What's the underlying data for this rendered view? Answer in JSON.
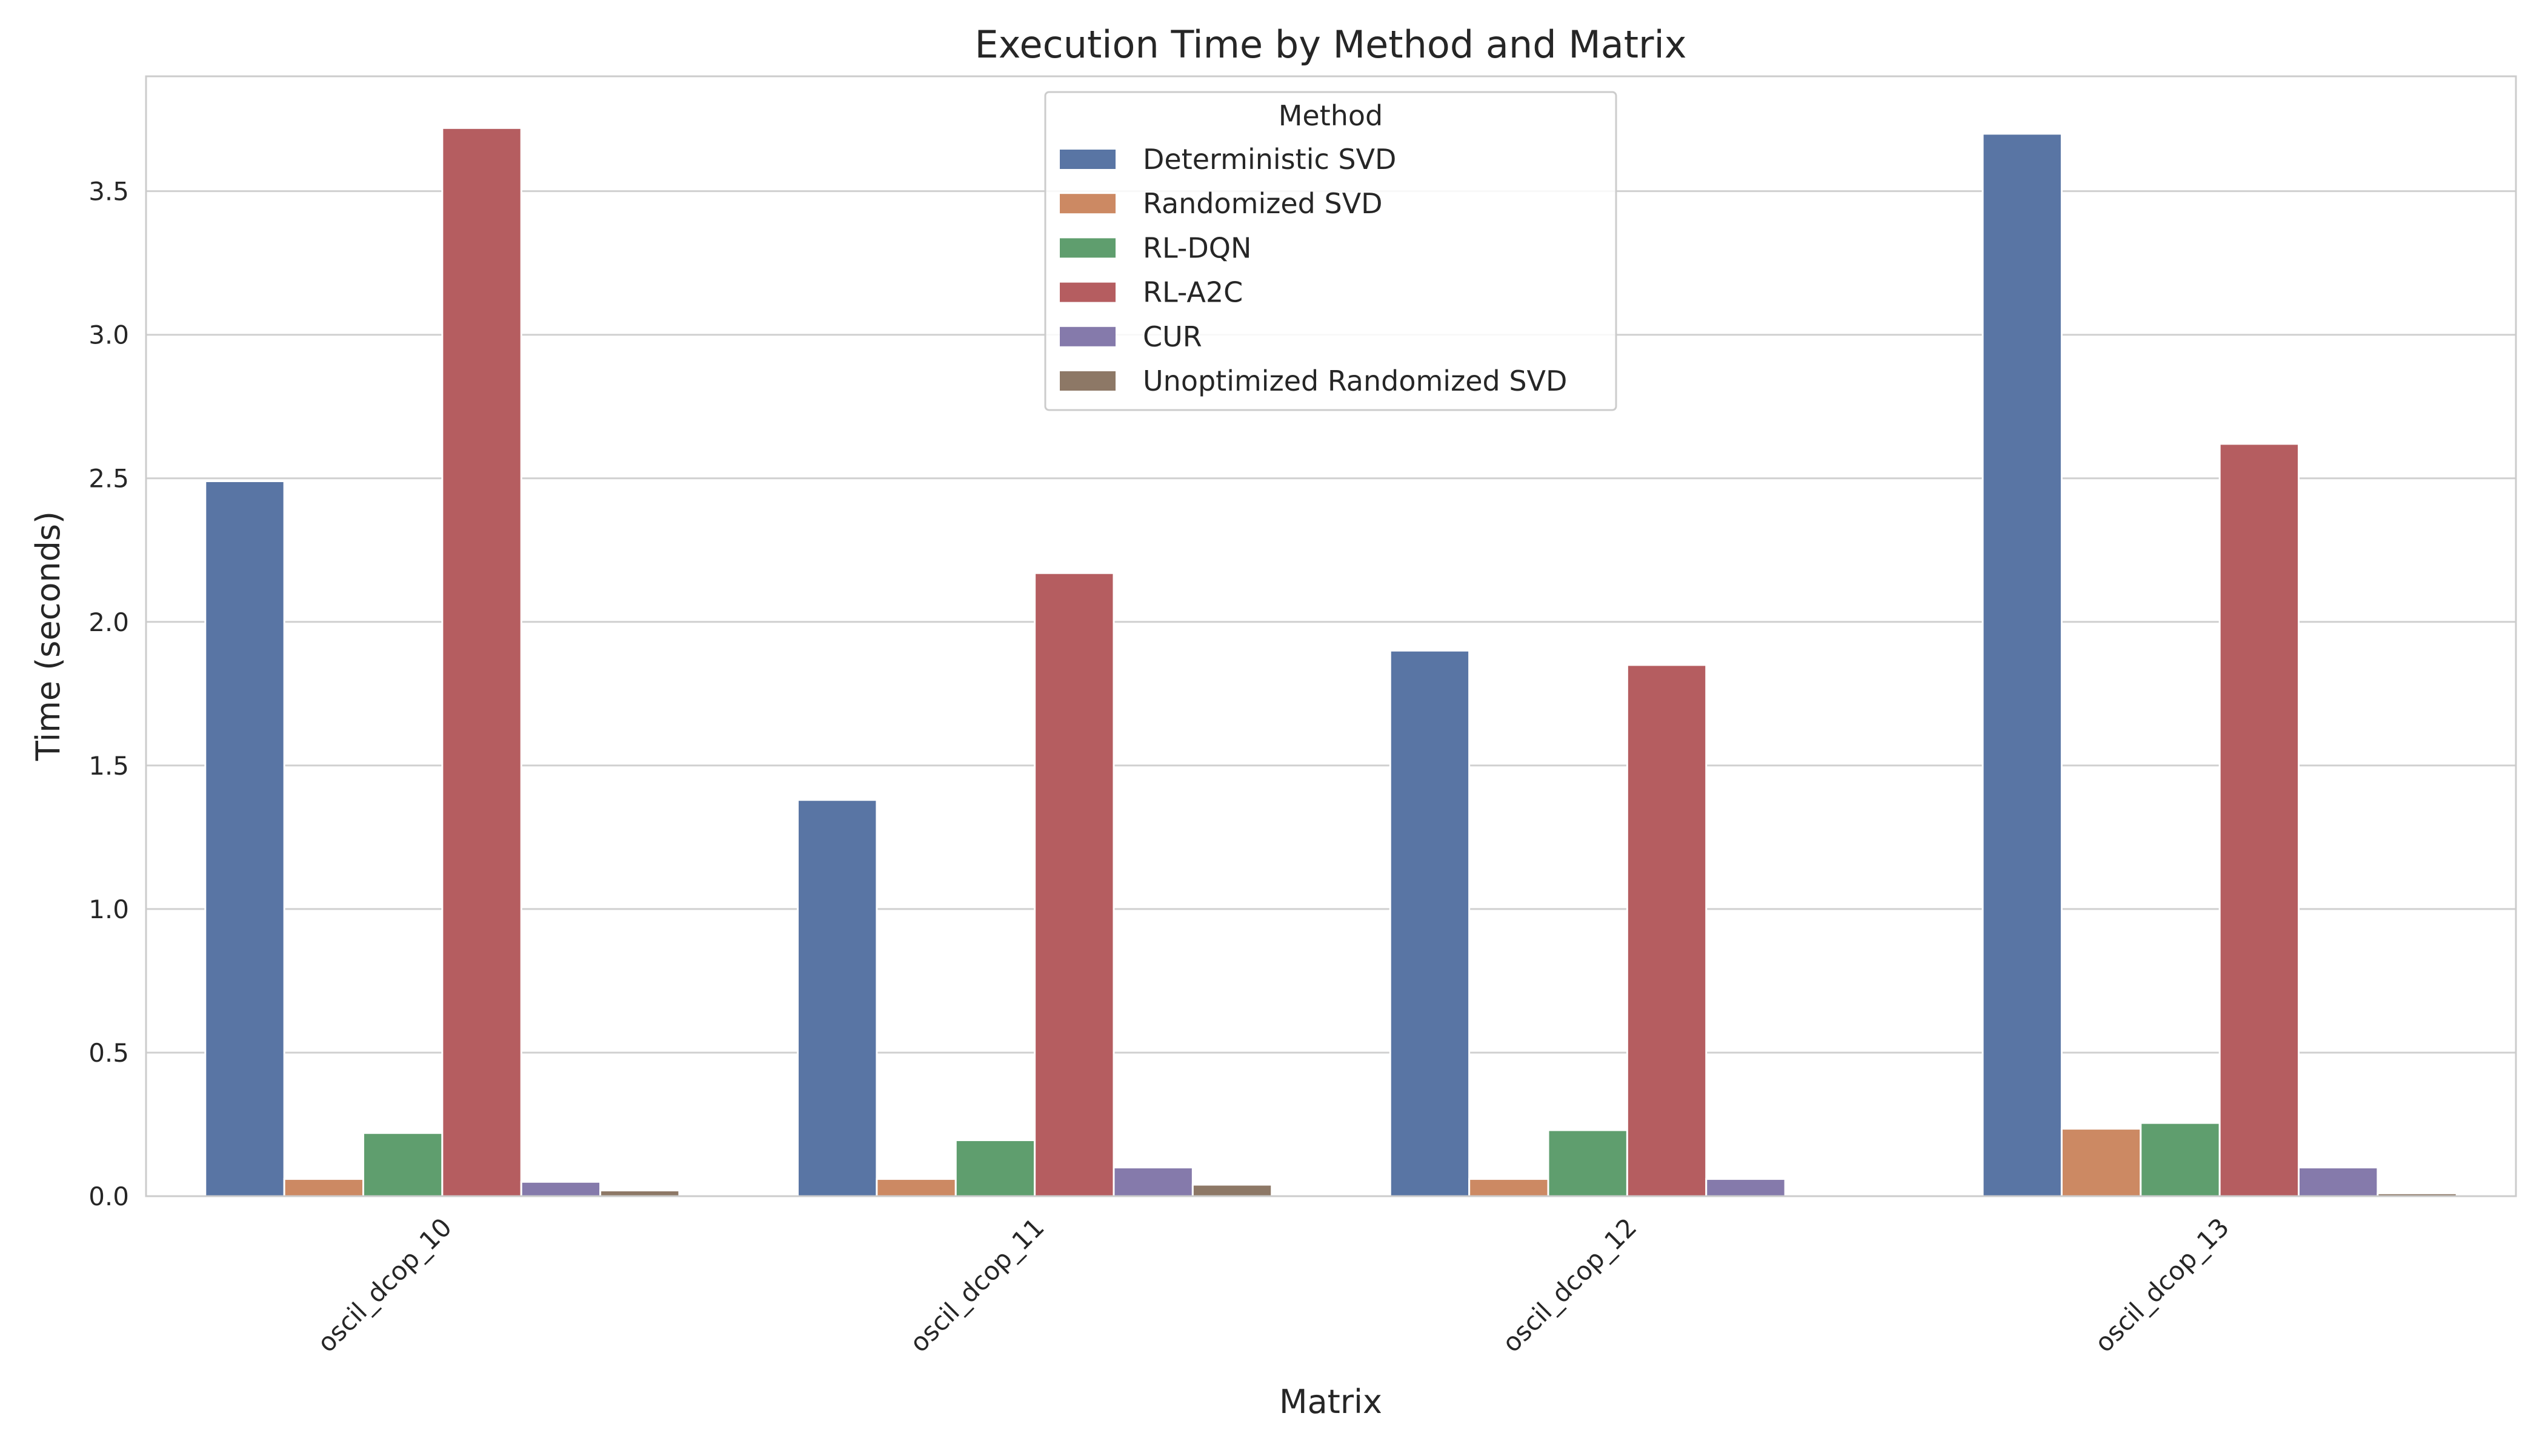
{
  "chart_data": {
    "type": "bar",
    "title": "Execution Time by Method and Matrix",
    "xlabel": "Matrix",
    "ylabel": "Time (seconds)",
    "ylim": [
      0,
      3.9
    ],
    "yticks": [
      "0.0",
      "0.5",
      "1.0",
      "1.5",
      "2.0",
      "2.5",
      "3.0",
      "3.5"
    ],
    "grid": true,
    "legend": {
      "title": "Method",
      "placement": "top-center"
    },
    "categories": [
      "oscil_dcop_10",
      "oscil_dcop_11",
      "oscil_dcop_12",
      "oscil_dcop_13"
    ],
    "series": [
      {
        "name": "Deterministic SVD",
        "color": "#5975a4",
        "values": [
          2.49,
          1.38,
          1.9,
          3.7
        ]
      },
      {
        "name": "Randomized SVD",
        "color": "#cc8963",
        "values": [
          0.06,
          0.06,
          0.06,
          0.235
        ]
      },
      {
        "name": "RL-DQN",
        "color": "#5f9e6e",
        "values": [
          0.22,
          0.195,
          0.23,
          0.255
        ]
      },
      {
        "name": "RL-A2C",
        "color": "#b55d60",
        "values": [
          3.72,
          2.17,
          1.85,
          2.62
        ]
      },
      {
        "name": "CUR",
        "color": "#857aab",
        "values": [
          0.05,
          0.1,
          0.06,
          0.1
        ]
      },
      {
        "name": "Unoptimized Randomized SVD",
        "color": "#8d7866",
        "values": [
          0.02,
          0.04,
          0.0,
          0.01
        ]
      }
    ]
  }
}
